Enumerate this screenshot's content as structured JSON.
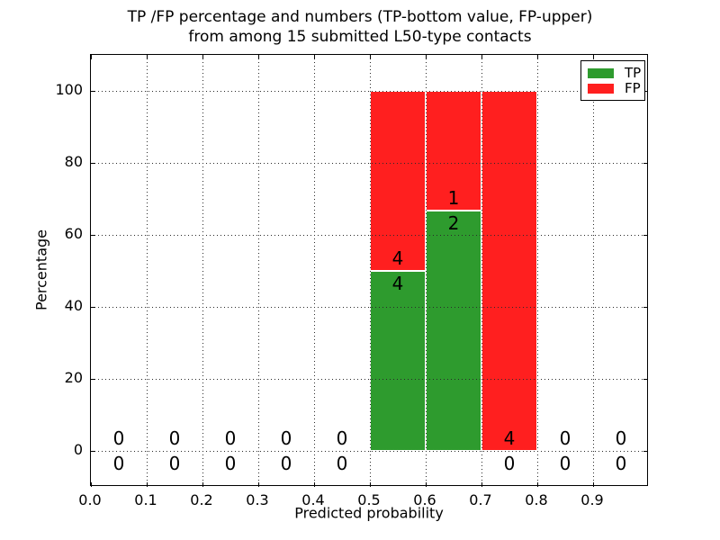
{
  "chart_data": {
    "type": "bar",
    "stacked": true,
    "title_line1": "TP /FP percentage and numbers (TP-bottom value, FP-upper)",
    "title_line2": "from among 15 submitted L50-type contacts",
    "xlabel": "Predicted probability",
    "ylabel": "Percentage",
    "xlim": [
      0.0,
      1.0
    ],
    "ylim": [
      -10,
      110
    ],
    "xtick_values": [
      0.0,
      0.1,
      0.2,
      0.3,
      0.4,
      0.5,
      0.6,
      0.7,
      0.8,
      0.9
    ],
    "xtick_labels": [
      "0.0",
      "0.1",
      "0.2",
      "0.3",
      "0.4",
      "0.5",
      "0.6",
      "0.7",
      "0.8",
      "0.9"
    ],
    "ytick_values": [
      0,
      20,
      40,
      60,
      80,
      100
    ],
    "ytick_labels": [
      "0",
      "20",
      "40",
      "60",
      "80",
      "100"
    ],
    "grid": {
      "style": "dotted",
      "above_bars": true
    },
    "colors": {
      "tp": "#2e9b2e",
      "fp": "#ff1f1f",
      "bar_edge": "#ffffff"
    },
    "legend": {
      "position": "upper-right",
      "entries": [
        {
          "label": "TP",
          "color": "#2e9b2e"
        },
        {
          "label": "FP",
          "color": "#ff1f1f"
        }
      ]
    },
    "bins": [
      {
        "range": [
          0.0,
          0.1
        ],
        "tp": 0,
        "fp": 0,
        "tp_pct": 0,
        "fp_pct": 0
      },
      {
        "range": [
          0.1,
          0.2
        ],
        "tp": 0,
        "fp": 0,
        "tp_pct": 0,
        "fp_pct": 0
      },
      {
        "range": [
          0.2,
          0.3
        ],
        "tp": 0,
        "fp": 0,
        "tp_pct": 0,
        "fp_pct": 0
      },
      {
        "range": [
          0.3,
          0.4
        ],
        "tp": 0,
        "fp": 0,
        "tp_pct": 0,
        "fp_pct": 0
      },
      {
        "range": [
          0.4,
          0.5
        ],
        "tp": 0,
        "fp": 0,
        "tp_pct": 0,
        "fp_pct": 0
      },
      {
        "range": [
          0.5,
          0.6
        ],
        "tp": 4,
        "fp": 4,
        "tp_pct": 50,
        "fp_pct": 50
      },
      {
        "range": [
          0.6,
          0.7
        ],
        "tp": 2,
        "fp": 1,
        "tp_pct": 66.667,
        "fp_pct": 33.333
      },
      {
        "range": [
          0.7,
          0.8
        ],
        "tp": 0,
        "fp": 4,
        "tp_pct": 0,
        "fp_pct": 100
      },
      {
        "range": [
          0.8,
          0.9
        ],
        "tp": 0,
        "fp": 0,
        "tp_pct": 0,
        "fp_pct": 0
      },
      {
        "range": [
          0.9,
          1.0
        ],
        "tp": 0,
        "fp": 0,
        "tp_pct": 0,
        "fp_pct": 0
      }
    ]
  }
}
